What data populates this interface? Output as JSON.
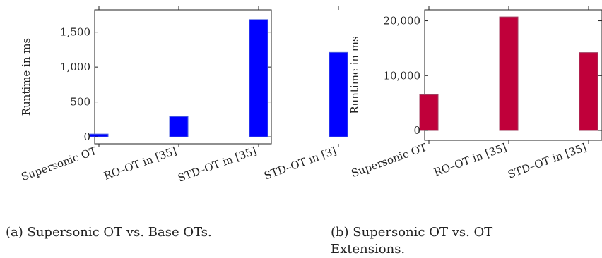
{
  "chart_data": [
    {
      "type": "bar",
      "categories": [
        "Supersonic OT",
        "RO–OT in [35]",
        "STD–OT in [35]",
        "STD–OT in [3]"
      ],
      "values": [
        40,
        290,
        1680,
        1210
      ],
      "ylabel": "Runtime in ms",
      "yticks": [
        0,
        500,
        1000,
        1500
      ],
      "ytick_labels": [
        "0",
        "500",
        "1,000",
        "1,500"
      ],
      "ylim": [
        -100,
        1820
      ],
      "color": "#0000ff",
      "edge_color": "#4a5fe0",
      "caption": "(a) Supersonic OT vs. Base OTs."
    },
    {
      "type": "bar",
      "categories": [
        "Supersonic OT",
        "RO–OT in [35]",
        "STD–OT in [35]"
      ],
      "values": [
        6500,
        20700,
        14200
      ],
      "ylabel": "Runtime in ms",
      "yticks": [
        0,
        10000,
        20000
      ],
      "ytick_labels": [
        "0",
        "10,000",
        "20,000"
      ],
      "ylim": [
        -1800,
        22000
      ],
      "color": "#c0003a",
      "edge_color": "#a04060",
      "caption": "(b) Supersonic OT vs. OT Extensions."
    }
  ]
}
